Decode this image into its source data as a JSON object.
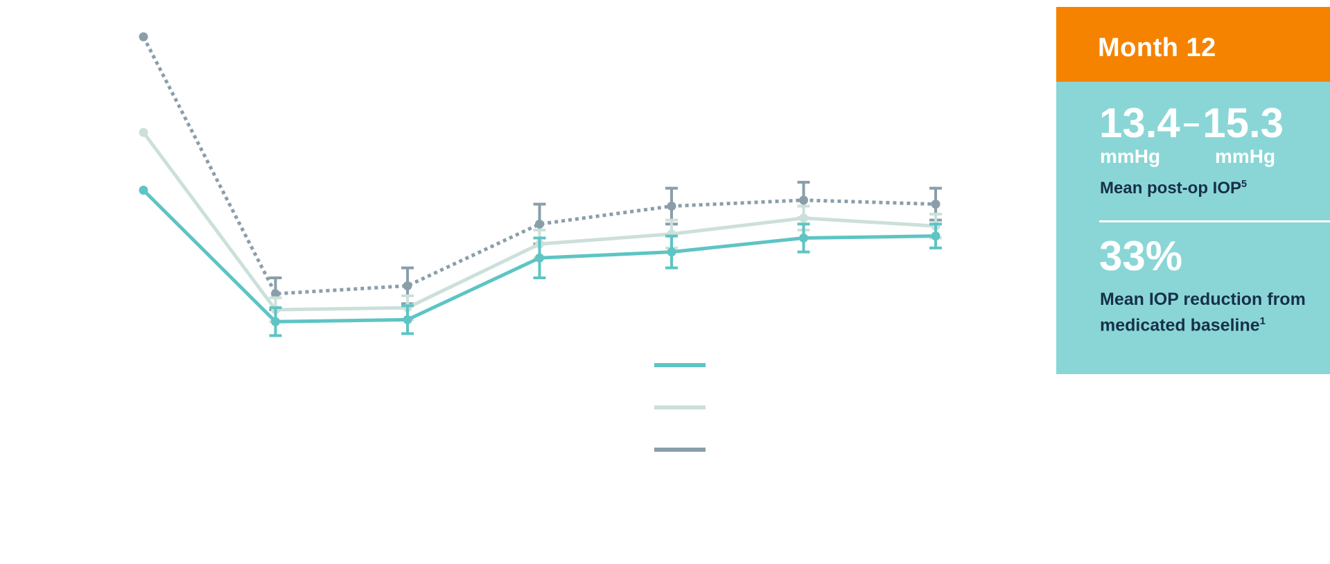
{
  "colors": {
    "panel_header": "#F58300",
    "panel_body": "#8AD6D6",
    "text_dark": "#17304A",
    "text_light": "#FFFFFF"
  },
  "chart_data": {
    "type": "line",
    "title": "",
    "xlabel": "",
    "ylabel": "",
    "x": [
      0,
      1,
      2,
      3,
      4,
      5,
      6
    ],
    "ylim": [
      10,
      34
    ],
    "grid": false,
    "legend_position": "center",
    "series": [
      {
        "key": "top",
        "color": "#8A9EAA",
        "style": "dotted",
        "values": [
          32.5,
          19.6,
          20.0,
          23.1,
          24.0,
          24.3,
          24.1
        ],
        "error": [
          null,
          0.8,
          0.9,
          1.0,
          0.9,
          0.9,
          0.8
        ]
      },
      {
        "key": "middle",
        "color": "#CCE0DA",
        "style": "solid",
        "values": [
          27.7,
          18.8,
          18.9,
          22.1,
          22.6,
          23.4,
          23.0
        ],
        "error": [
          null,
          0.6,
          0.6,
          0.7,
          0.7,
          0.6,
          0.6
        ]
      },
      {
        "key": "bottom",
        "color": "#5EC4C4",
        "style": "solid",
        "values": [
          24.8,
          18.2,
          18.3,
          21.4,
          21.7,
          22.4,
          22.5
        ],
        "error": [
          null,
          0.7,
          0.7,
          1.0,
          0.8,
          0.7,
          0.6
        ]
      }
    ]
  },
  "panel": {
    "header": "Month 12",
    "range_low": "13.4",
    "range_sep": "–",
    "range_high": "15.3",
    "unit_low": "mmHg",
    "unit_high": "mmHg",
    "stat1_label": "Mean post-op IOP",
    "stat1_ref": "5",
    "stat2_value": "33%",
    "stat2_label": "Mean IOP reduction from medicated baseline",
    "stat2_ref": "1"
  }
}
